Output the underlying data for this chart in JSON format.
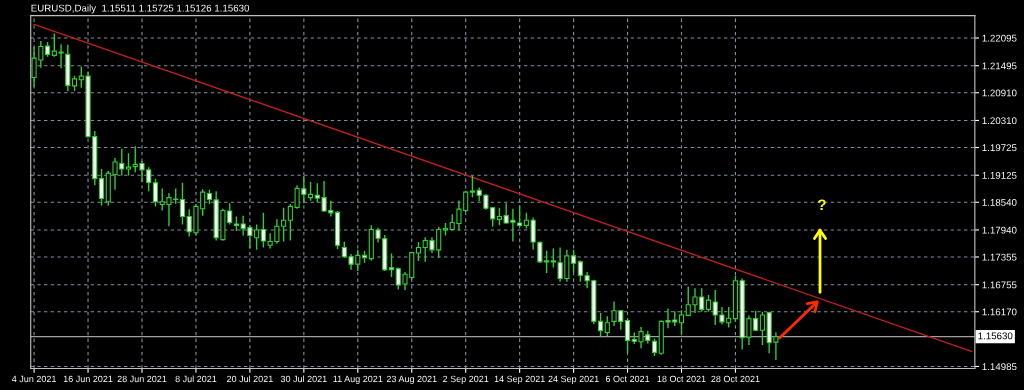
{
  "chart_data": {
    "type": "candlestick",
    "title": "EURUSD,Daily  1.15511 1.15725 1.15126 1.15630",
    "ylim": [
      1.1494,
      1.2258
    ],
    "grid": true,
    "categories": [
      "4 Jun 2021",
      null,
      null,
      null,
      null,
      null,
      null,
      null,
      "16 Jun 2021",
      null,
      null,
      null,
      null,
      null,
      null,
      null,
      "28 Jun 2021",
      null,
      null,
      null,
      null,
      null,
      null,
      null,
      "8 Jul 2021",
      null,
      null,
      null,
      null,
      null,
      null,
      null,
      "20 Jul 2021",
      null,
      null,
      null,
      null,
      null,
      null,
      null,
      "30 Jul 2021",
      null,
      null,
      null,
      null,
      null,
      null,
      null,
      "11 Aug 2021",
      null,
      null,
      null,
      null,
      null,
      null,
      null,
      "23 Aug 2021",
      null,
      null,
      null,
      null,
      null,
      null,
      null,
      "2 Sep 2021",
      null,
      null,
      null,
      null,
      null,
      null,
      null,
      "14 Sep 2021",
      null,
      null,
      null,
      null,
      null,
      null,
      null,
      "24 Sep 2021",
      null,
      null,
      null,
      null,
      null,
      null,
      null,
      "6 Oct 2021",
      null,
      null,
      null,
      null,
      null,
      null,
      null,
      "18 Oct 2021",
      null,
      null,
      null,
      null,
      null,
      null,
      null,
      "28 Oct 2021",
      null,
      null,
      null,
      null,
      null,
      null,
      null,
      null,
      null,
      null,
      null,
      null,
      null,
      null,
      null,
      null,
      null,
      null,
      null,
      null,
      null,
      null,
      null,
      null,
      null,
      null,
      null,
      null,
      null,
      null,
      null,
      null,
      null,
      null,
      null
    ],
    "yticks": [
      1.22095,
      1.21495,
      {
        "value": 1.2091,
        "label": "1.20910"
      },
      {
        "value": 1.2031,
        "label": "1.20310"
      },
      1.19725,
      1.19125,
      {
        "value": 1.1854,
        "label": "1.18540"
      },
      {
        "value": 1.1794,
        "label": "1.17940"
      },
      1.17355,
      1.16755,
      {
        "value": 1.1617,
        "label": "1.16170"
      },
      1.14985
    ],
    "ref_lines": [
      {
        "axis": "y",
        "value": 1.1563,
        "label": "1.15630",
        "color": "#a0a0a0"
      }
    ],
    "annotations": [
      "?"
    ],
    "series": [
      {
        "color": "#32cd32",
        "ohlc": [
          [
            1.2124,
            1.219,
            1.2104,
            1.2166
          ],
          [
            1.2162,
            1.2203,
            1.2145,
            1.2191
          ],
          [
            1.2192,
            1.2201,
            1.2169,
            1.2174
          ],
          [
            1.2172,
            1.2219,
            1.2169,
            1.2181
          ],
          [
            1.2179,
            1.2196,
            1.2144,
            1.2177
          ],
          [
            1.2174,
            1.2195,
            1.2094,
            1.2107
          ],
          [
            1.2106,
            1.2128,
            1.2095,
            1.2121
          ],
          [
            1.2119,
            1.2148,
            1.2102,
            1.2127
          ],
          [
            1.2127,
            1.2137,
            1.1994,
            1.1996
          ],
          [
            1.1996,
            1.2008,
            1.1891,
            1.1905
          ],
          [
            1.1905,
            1.1926,
            1.1847,
            1.1862
          ],
          [
            1.1855,
            1.1922,
            1.1847,
            1.1917
          ],
          [
            1.1914,
            1.195,
            1.1881,
            1.1941
          ],
          [
            1.1938,
            1.197,
            1.1912,
            1.1926
          ],
          [
            1.1926,
            1.196,
            1.1912,
            1.193
          ],
          [
            1.1931,
            1.1975,
            1.1919,
            1.1936
          ],
          [
            1.1938,
            1.1943,
            1.1898,
            1.1924
          ],
          [
            1.1924,
            1.193,
            1.1878,
            1.1897
          ],
          [
            1.1896,
            1.1905,
            1.1845,
            1.1855
          ],
          [
            1.1849,
            1.1884,
            1.1836,
            1.1855
          ],
          [
            1.1849,
            1.1874,
            1.1802,
            1.1864
          ],
          [
            1.1861,
            1.1884,
            1.185,
            1.186
          ],
          [
            1.186,
            1.1896,
            1.1806,
            1.1823
          ],
          [
            1.1823,
            1.1839,
            1.178,
            1.179
          ],
          [
            1.1788,
            1.185,
            1.1782,
            1.1845
          ],
          [
            1.184,
            1.1882,
            1.1825,
            1.1876
          ],
          [
            1.1873,
            1.1881,
            1.185,
            1.186
          ],
          [
            1.1859,
            1.1878,
            1.1771,
            1.1777
          ],
          [
            1.1773,
            1.184,
            1.1771,
            1.1836
          ],
          [
            1.1835,
            1.1852,
            1.1806,
            1.181
          ],
          [
            1.1807,
            1.1823,
            1.1792,
            1.1804
          ],
          [
            1.1807,
            1.1825,
            1.1782,
            1.1797
          ],
          [
            1.1799,
            1.1804,
            1.1754,
            1.1782
          ],
          [
            1.1777,
            1.1806,
            1.1751,
            1.1794
          ],
          [
            1.1795,
            1.1831,
            1.1756,
            1.177
          ],
          [
            1.1761,
            1.1787,
            1.1754,
            1.1769
          ],
          [
            1.1769,
            1.1817,
            1.1764,
            1.1802
          ],
          [
            1.1802,
            1.1842,
            1.1769,
            1.1815
          ],
          [
            1.1815,
            1.185,
            1.1771,
            1.1845
          ],
          [
            1.1843,
            1.1891,
            1.184,
            1.1884
          ],
          [
            1.1883,
            1.1911,
            1.1852,
            1.1871
          ],
          [
            1.1864,
            1.1898,
            1.1857,
            1.1871
          ],
          [
            1.1869,
            1.1895,
            1.1854,
            1.1863
          ],
          [
            1.1864,
            1.19,
            1.1833,
            1.1835
          ],
          [
            1.1836,
            1.1857,
            1.1823,
            1.1831
          ],
          [
            1.1832,
            1.1835,
            1.1753,
            1.1761
          ],
          [
            1.1756,
            1.1769,
            1.1734,
            1.1736
          ],
          [
            1.1736,
            1.1742,
            1.1708,
            1.172
          ],
          [
            1.172,
            1.1751,
            1.1705,
            1.1739
          ],
          [
            1.1739,
            1.1749,
            1.1723,
            1.1734
          ],
          [
            1.1732,
            1.1804,
            1.1728,
            1.1795
          ],
          [
            1.1794,
            1.1799,
            1.1767,
            1.1776
          ],
          [
            1.1775,
            1.1783,
            1.1705,
            1.1708
          ],
          [
            1.1712,
            1.1743,
            1.1692,
            1.1708
          ],
          [
            1.171,
            1.1713,
            1.1665,
            1.1675
          ],
          [
            1.1677,
            1.1703,
            1.1664,
            1.1698
          ],
          [
            1.1691,
            1.1747,
            1.1686,
            1.1745
          ],
          [
            1.1744,
            1.1768,
            1.1727,
            1.1756
          ],
          [
            1.1756,
            1.1778,
            1.1725,
            1.1771
          ],
          [
            1.1771,
            1.1778,
            1.1744,
            1.1751
          ],
          [
            1.1751,
            1.1801,
            1.1734,
            1.1795
          ],
          [
            1.1794,
            1.1809,
            1.1782,
            1.1797
          ],
          [
            1.1795,
            1.1828,
            1.1793,
            1.181
          ],
          [
            1.1808,
            1.1858,
            1.1793,
            1.1839
          ],
          [
            1.1836,
            1.1879,
            1.1833,
            1.1876
          ],
          [
            1.1878,
            1.1911,
            1.1865,
            1.1876
          ],
          [
            1.188,
            1.1886,
            1.1856,
            1.1869
          ],
          [
            1.1869,
            1.1872,
            1.1838,
            1.1841
          ],
          [
            1.1842,
            1.1843,
            1.1801,
            1.1818
          ],
          [
            1.1817,
            1.1842,
            1.1804,
            1.1823
          ],
          [
            1.1825,
            1.1852,
            1.1808,
            1.1809
          ],
          [
            1.1815,
            1.184,
            1.1769,
            1.1811
          ],
          [
            1.1809,
            1.1847,
            1.1801,
            1.1804
          ],
          [
            1.1804,
            1.1831,
            1.1797,
            1.1815
          ],
          [
            1.1815,
            1.1821,
            1.1751,
            1.1768
          ],
          [
            1.1767,
            1.1769,
            1.1723,
            1.1725
          ],
          [
            1.1727,
            1.1749,
            1.1701,
            1.1725
          ],
          [
            1.1727,
            1.1754,
            1.1713,
            1.1725
          ],
          [
            1.1723,
            1.1756,
            1.1682,
            1.1689
          ],
          [
            1.1689,
            1.1751,
            1.1682,
            1.1738
          ],
          [
            1.1738,
            1.1751,
            1.1703,
            1.1722
          ],
          [
            1.1725,
            1.1728,
            1.1682,
            1.1696
          ],
          [
            1.1695,
            1.1703,
            1.1668,
            1.1684
          ],
          [
            1.1684,
            1.1686,
            1.159,
            1.1596
          ],
          [
            1.1596,
            1.1614,
            1.1562,
            1.1576
          ],
          [
            1.1572,
            1.1607,
            1.1564,
            1.1593
          ],
          [
            1.1596,
            1.1639,
            1.1586,
            1.1619
          ],
          [
            1.1619,
            1.162,
            1.1578,
            1.1596
          ],
          [
            1.1598,
            1.1603,
            1.1528,
            1.1555
          ],
          [
            1.1557,
            1.1572,
            1.1547,
            1.1553
          ],
          [
            1.1552,
            1.1584,
            1.1538,
            1.1574
          ],
          [
            1.1567,
            1.1576,
            1.1548,
            1.1555
          ],
          [
            1.1553,
            1.1559,
            1.1521,
            1.1529
          ],
          [
            1.1527,
            1.1598,
            1.1524,
            1.1596
          ],
          [
            1.1598,
            1.1624,
            1.1581,
            1.1595
          ],
          [
            1.1599,
            1.1618,
            1.1586,
            1.1595
          ],
          [
            1.1593,
            1.162,
            1.1568,
            1.161
          ],
          [
            1.1609,
            1.1671,
            1.1607,
            1.1632
          ],
          [
            1.1632,
            1.1668,
            1.1614,
            1.1649
          ],
          [
            1.1649,
            1.1668,
            1.1617,
            1.1622
          ],
          [
            1.1622,
            1.1653,
            1.1617,
            1.1642
          ],
          [
            1.1638,
            1.1664,
            1.1588,
            1.161
          ],
          [
            1.161,
            1.1627,
            1.159,
            1.1595
          ],
          [
            1.1593,
            1.1627,
            1.1583,
            1.1603
          ],
          [
            1.1602,
            1.1695,
            1.1595,
            1.1684
          ],
          [
            1.1684,
            1.1689,
            1.1535,
            1.1561
          ],
          [
            1.1562,
            1.1609,
            1.1545,
            1.1602
          ],
          [
            1.1602,
            1.1619,
            1.1575,
            1.1577
          ],
          [
            1.1577,
            1.1617,
            1.1545,
            1.161
          ],
          [
            1.1615,
            1.1617,
            1.1527,
            1.155
          ],
          [
            1.15511,
            1.15725,
            1.15126,
            1.1563
          ],
          null,
          null,
          null,
          null,
          null,
          null,
          null,
          null,
          null,
          null,
          null,
          null,
          null,
          null,
          null,
          null,
          null,
          null,
          null,
          null,
          null,
          null,
          null,
          null,
          null,
          null,
          null,
          null,
          null
        ]
      },
      {
        "type": "line",
        "color": "#c02020",
        "values": [
          1.2239,
          null,
          null,
          null,
          null,
          null,
          null,
          null,
          null,
          null,
          null,
          null,
          null,
          null,
          null,
          null,
          null,
          null,
          null,
          null,
          null,
          null,
          null,
          null,
          null,
          null,
          null,
          null,
          null,
          null,
          null,
          null,
          null,
          null,
          null,
          null,
          null,
          null,
          null,
          null,
          null,
          null,
          null,
          null,
          null,
          null,
          null,
          null,
          null,
          null,
          null,
          null,
          null,
          null,
          null,
          null,
          null,
          null,
          null,
          null,
          null,
          null,
          null,
          null,
          null,
          null,
          null,
          null,
          null,
          null,
          null,
          null,
          null,
          null,
          null,
          null,
          null,
          null,
          null,
          null,
          null,
          null,
          null,
          null,
          null,
          null,
          null,
          null,
          null,
          null,
          null,
          null,
          null,
          null,
          null,
          null,
          null,
          null,
          null,
          null,
          null,
          null,
          null,
          null,
          null,
          null,
          null,
          null,
          null,
          null,
          null,
          null,
          null,
          null,
          null,
          null,
          null,
          null,
          null,
          null,
          null,
          null,
          null,
          null,
          null,
          null,
          null,
          null,
          null,
          null,
          null,
          null,
          null,
          null,
          null,
          null,
          null,
          null,
          null,
          1.1531
        ]
      }
    ]
  }
}
